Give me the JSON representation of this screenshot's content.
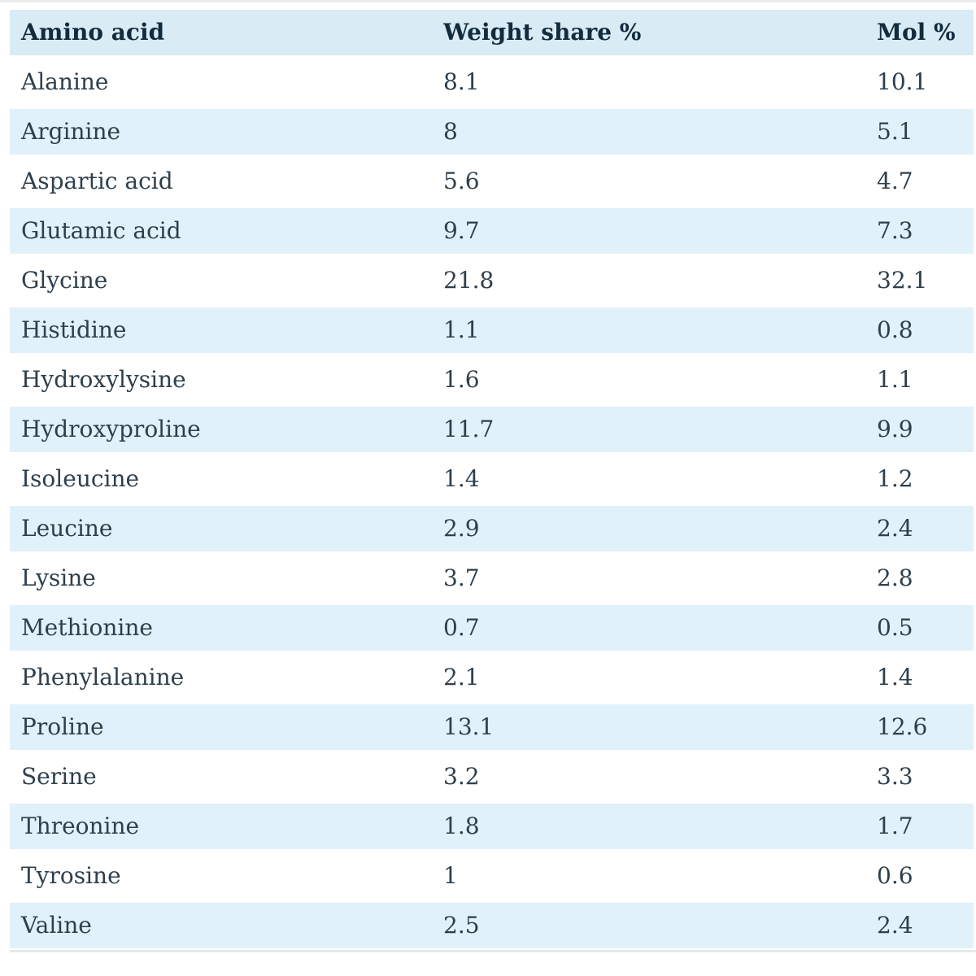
{
  "chart_data": {
    "type": "table",
    "columns": [
      "Amino acid",
      "Weight share %",
      "Mol %"
    ],
    "rows": [
      [
        "Alanine",
        8.1,
        10.1
      ],
      [
        "Arginine",
        8,
        5.1
      ],
      [
        "Aspartic acid",
        5.6,
        4.7
      ],
      [
        "Glutamic acid",
        9.7,
        7.3
      ],
      [
        "Glycine",
        21.8,
        32.1
      ],
      [
        "Histidine",
        1.1,
        0.8
      ],
      [
        "Hydroxylysine",
        1.6,
        1.1
      ],
      [
        "Hydroxyproline",
        11.7,
        9.9
      ],
      [
        "Isoleucine",
        1.4,
        1.2
      ],
      [
        "Leucine",
        2.9,
        2.4
      ],
      [
        "Lysine",
        3.7,
        2.8
      ],
      [
        "Methionine",
        0.7,
        0.5
      ],
      [
        "Phenylalanine",
        2.1,
        1.4
      ],
      [
        "Proline",
        13.1,
        12.6
      ],
      [
        "Serine",
        3.2,
        3.3
      ],
      [
        "Threonine",
        1.8,
        1.7
      ],
      [
        "Tyrosine",
        1,
        0.6
      ],
      [
        "Valine",
        2.5,
        2.4
      ]
    ]
  },
  "colors": {
    "stripe_blue": "#e0f1f9",
    "header_blue": "#d9ebf5",
    "body_text": "#2e3f4c",
    "header_text": "#132c3d",
    "bottom_rule": "#e6e9e9"
  }
}
